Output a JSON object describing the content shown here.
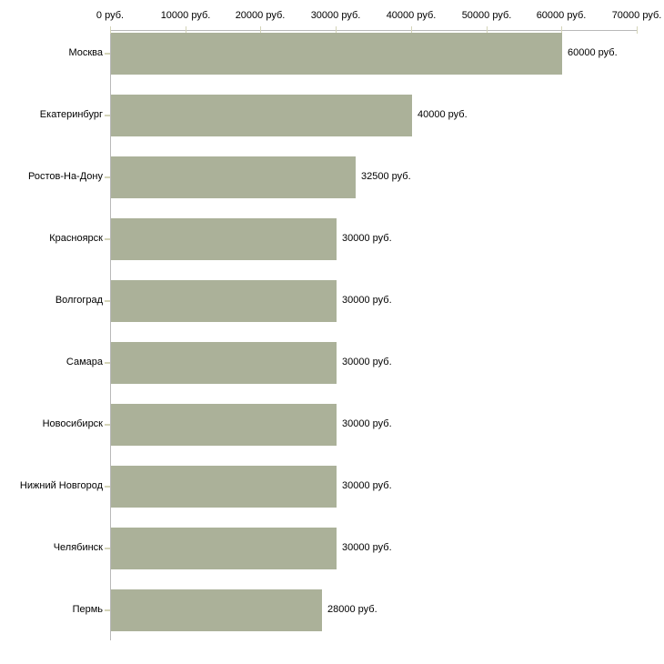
{
  "chart_data": {
    "type": "bar",
    "orientation": "horizontal",
    "title": "",
    "xlabel": "",
    "ylabel": "",
    "unit": "руб.",
    "categories": [
      "Москва",
      "Екатеринбург",
      "Ростов-На-Дону",
      "Красноярск",
      "Волгоград",
      "Самара",
      "Новосибирск",
      "Нижний Новгород",
      "Челябинск",
      "Пермь"
    ],
    "values": [
      60000,
      40000,
      32500,
      30000,
      30000,
      30000,
      30000,
      30000,
      30000,
      28000
    ],
    "value_labels": [
      "60000 руб.",
      "40000 руб.",
      "32500 руб.",
      "30000 руб.",
      "30000 руб.",
      "30000 руб.",
      "30000 руб.",
      "30000 руб.",
      "30000 руб.",
      "28000 руб."
    ],
    "xlim": [
      0,
      70000
    ],
    "x_ticks": [
      0,
      10000,
      20000,
      30000,
      40000,
      50000,
      60000,
      70000
    ],
    "x_tick_labels": [
      "0 руб.",
      "10000 руб.",
      "20000 руб.",
      "30000 руб.",
      "40000 руб.",
      "50000 руб.",
      "60000 руб.",
      "70000 руб."
    ],
    "grid": false,
    "legend": "none",
    "colors": {
      "bar": "#abb199",
      "axis_line": "#b9b9b9",
      "tick": "#d4d4b8",
      "text": "#000000",
      "background": "#ffffff"
    }
  }
}
